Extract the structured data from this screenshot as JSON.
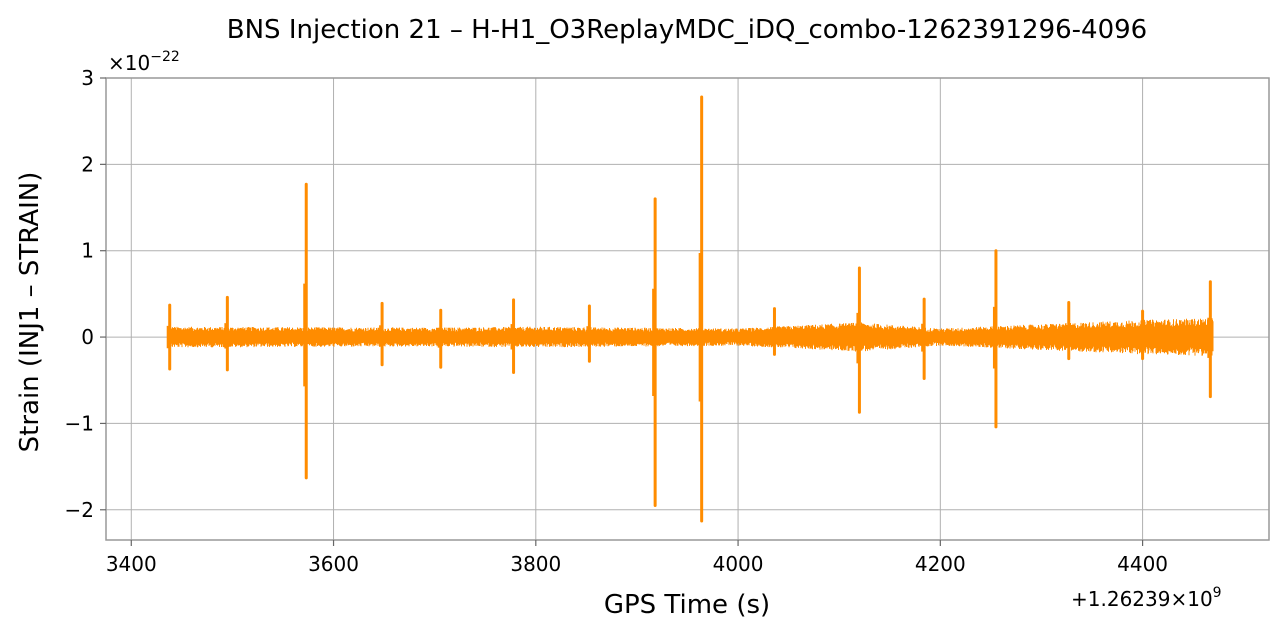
{
  "chart_data": {
    "type": "line",
    "title": "BNS Injection 21 – H-H1_O3ReplayMDC_iDQ_combo-1262391296-4096",
    "xlabel": "GPS Time (s)",
    "ylabel": "Strain (INJ1 – STRAIN)",
    "x_offset_label": "+1.26239×10",
    "x_offset_exp": "9",
    "y_scale_base": "×10",
    "y_scale_exp": "−22",
    "xlim": [
      3375,
      4525
    ],
    "ylim": [
      -2.35,
      3.0
    ],
    "x_ticks": [
      3400,
      3600,
      3800,
      4000,
      4200,
      4400
    ],
    "x_tick_labels": [
      "3400",
      "3600",
      "3800",
      "4000",
      "4200",
      "4400"
    ],
    "y_ticks": [
      -2,
      -1,
      0,
      1,
      2,
      3
    ],
    "y_tick_labels": [
      "−2",
      "−1",
      "0",
      "1",
      "2",
      "3"
    ],
    "grid": true,
    "series": [
      {
        "color": "#ff8c00",
        "t_start": 3436,
        "t_end": 4470,
        "noise_envelope": [
          [
            3436,
            0.12
          ],
          [
            3700,
            0.11
          ],
          [
            3800,
            0.12
          ],
          [
            4000,
            0.1
          ],
          [
            4120,
            0.17
          ],
          [
            4200,
            0.1
          ],
          [
            4400,
            0.2
          ],
          [
            4470,
            0.22
          ]
        ],
        "spikes": [
          {
            "x": 3438,
            "max": 0.37,
            "min": -0.37
          },
          {
            "x": 3495,
            "max": 0.46,
            "min": -0.38
          },
          {
            "x": 3573,
            "max": 1.77,
            "min": -1.63
          },
          {
            "x": 3648,
            "max": 0.39,
            "min": -0.32
          },
          {
            "x": 3706,
            "max": 0.31,
            "min": -0.35
          },
          {
            "x": 3778,
            "max": 0.43,
            "min": -0.41
          },
          {
            "x": 3853,
            "max": 0.36,
            "min": -0.28
          },
          {
            "x": 3918,
            "max": 1.6,
            "min": -1.95
          },
          {
            "x": 3964,
            "max": 2.78,
            "min": -2.13
          },
          {
            "x": 4036,
            "max": 0.33,
            "min": -0.2
          },
          {
            "x": 4120,
            "max": 0.8,
            "min": -0.87
          },
          {
            "x": 4184,
            "max": 0.44,
            "min": -0.48
          },
          {
            "x": 4255,
            "max": 1.0,
            "min": -1.04
          },
          {
            "x": 4327,
            "max": 0.4,
            "min": -0.25
          },
          {
            "x": 4400,
            "max": 0.3,
            "min": -0.25
          },
          {
            "x": 4467,
            "max": 0.64,
            "min": -0.69
          }
        ]
      }
    ]
  }
}
